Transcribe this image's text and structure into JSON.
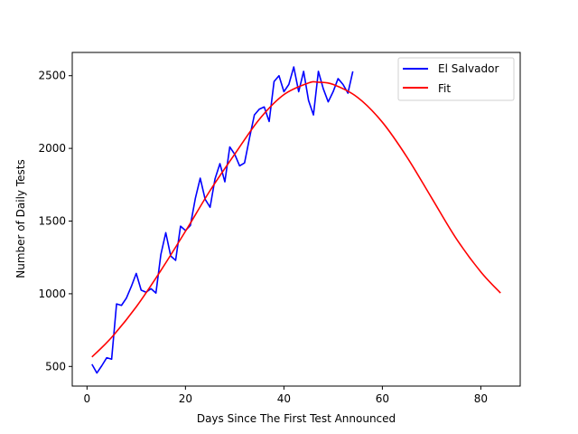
{
  "chart_data": {
    "type": "line",
    "xlabel": "Days Since The First Test Announced",
    "ylabel": "Number of Daily Tests",
    "xlim": [
      -3,
      88
    ],
    "ylim": [
      365,
      2660
    ],
    "xticks": [
      0,
      20,
      40,
      60,
      80
    ],
    "yticks": [
      500,
      1000,
      1500,
      2000,
      2500
    ],
    "grid": false,
    "legend_position": "top-right",
    "series": [
      {
        "name": "El Salvador",
        "color": "#0000ff",
        "style": "line",
        "x": [
          1,
          2,
          3,
          4,
          5,
          6,
          7,
          8,
          9,
          10,
          11,
          12,
          13,
          14,
          15,
          16,
          17,
          18,
          19,
          20,
          21,
          22,
          23,
          24,
          25,
          26,
          27,
          28,
          29,
          30,
          31,
          32,
          33,
          34,
          35,
          36,
          37,
          38,
          39,
          40,
          41,
          42,
          43,
          44,
          45,
          46,
          47,
          48,
          49,
          50,
          51,
          52,
          53,
          54
        ],
        "y": [
          515,
          455,
          505,
          560,
          550,
          930,
          920,
          970,
          1050,
          1140,
          1025,
          1010,
          1035,
          1005,
          1270,
          1420,
          1260,
          1230,
          1465,
          1435,
          1470,
          1655,
          1795,
          1650,
          1595,
          1790,
          1895,
          1770,
          2010,
          1960,
          1880,
          1900,
          2070,
          2230,
          2270,
          2285,
          2185,
          2460,
          2500,
          2390,
          2440,
          2560,
          2390,
          2530,
          2330,
          2230,
          2530,
          2410,
          2320,
          2390,
          2480,
          2440,
          2380,
          2530
        ]
      },
      {
        "name": "Fit",
        "color": "#ff0000",
        "style": "curve",
        "x": [
          1,
          5,
          10,
          15,
          20,
          25,
          30,
          35,
          40,
          45,
          47,
          50,
          55,
          60,
          65,
          70,
          75,
          80,
          84
        ],
        "y": [
          565,
          700,
          910,
          1160,
          1430,
          1710,
          1960,
          2200,
          2370,
          2450,
          2455,
          2440,
          2350,
          2180,
          1940,
          1660,
          1380,
          1150,
          1005
        ]
      }
    ]
  }
}
